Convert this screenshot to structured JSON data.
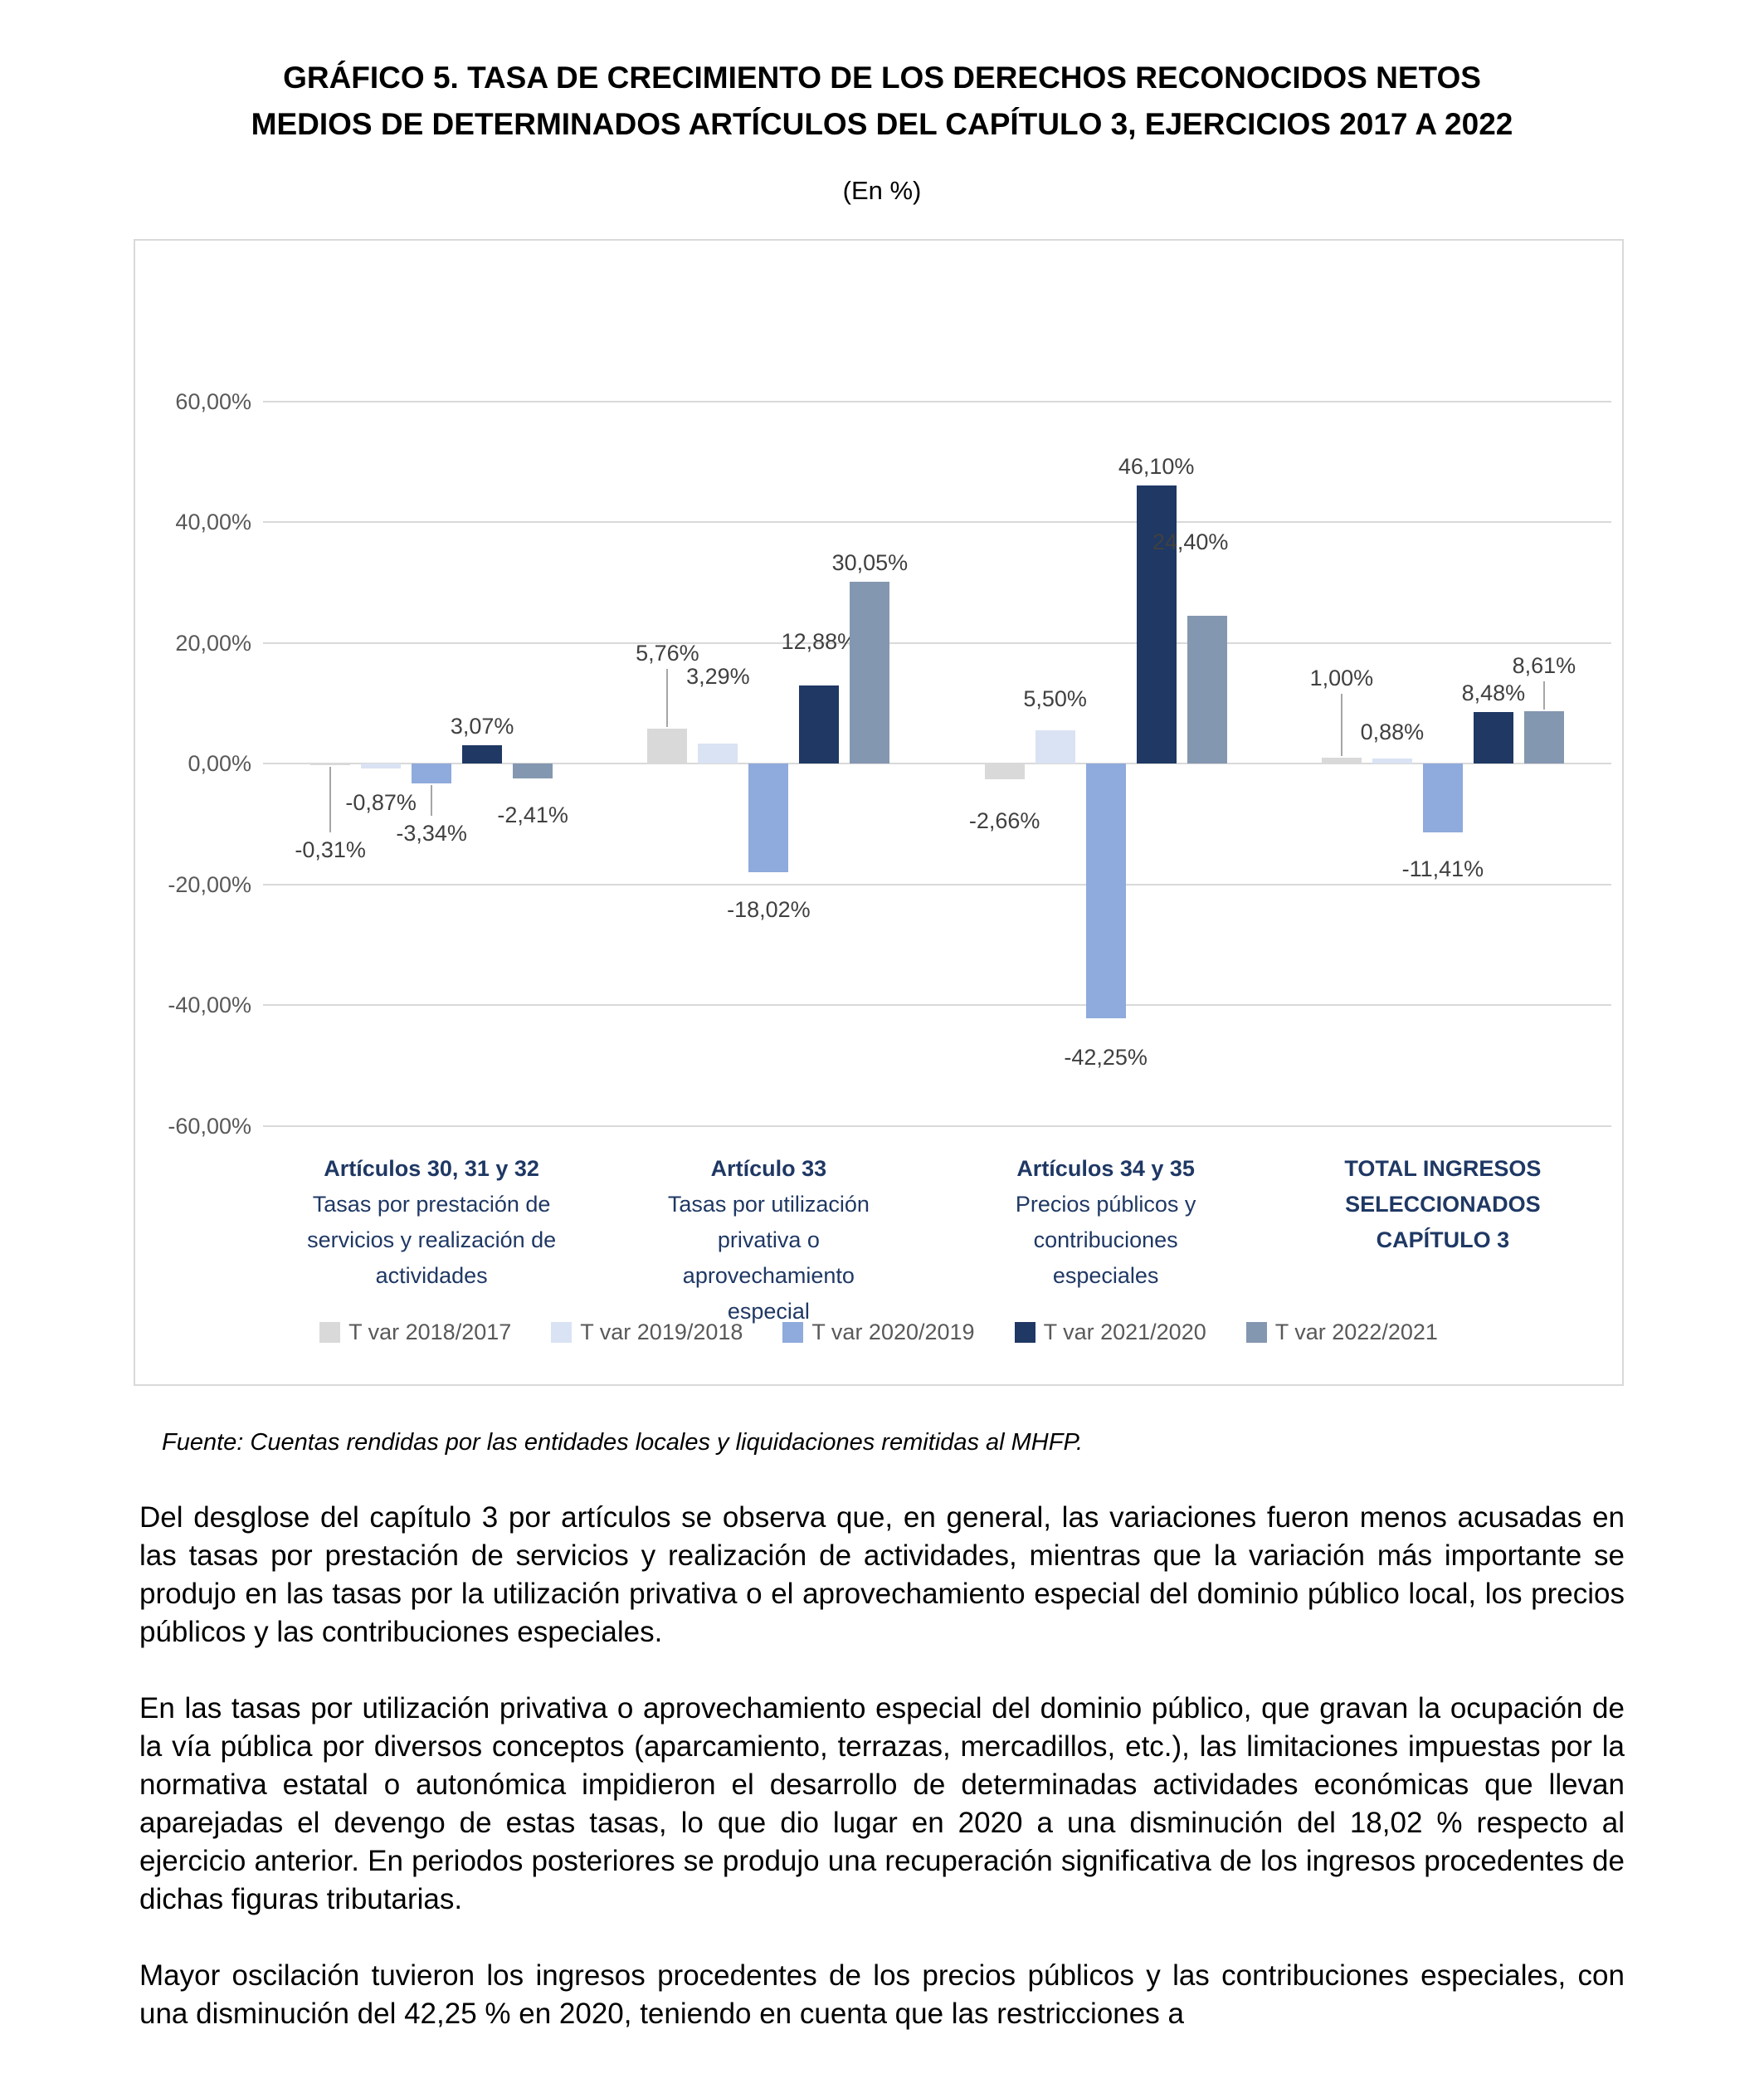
{
  "title": {
    "line1": "GRÁFICO 5.  TASA DE CRECIMIENTO DE LOS DERECHOS RECONOCIDOS NETOS",
    "line2": "MEDIOS DE DETERMINADOS ARTÍCULOS DEL CAPÍTULO 3, EJERCICIOS 2017 A 2022"
  },
  "subtitle": "(En %)",
  "source": "Fuente: Cuentas rendidas por las entidades locales y liquidaciones remitidas al MHFP.",
  "paragraphs": [
    "Del desglose del capítulo 3 por artículos se observa que, en general, las variaciones fueron menos acusadas en las tasas por prestación de servicios y realización de actividades, mientras que la variación más importante se produjo en las tasas por la utilización privativa o el aprovechamiento especial del dominio público local, los precios públicos y las contribuciones especiales.",
    "En las tasas por utilización privativa o aprovechamiento especial del dominio público, que gravan la ocupación de la vía pública por diversos conceptos (aparcamiento, terrazas, mercadillos, etc.), las limitaciones impuestas por la normativa estatal o autonómica impidieron el desarrollo de determinadas actividades económicas que llevan aparejadas el devengo de estas tasas, lo que dio lugar en 2020 a una disminución del 18,02 % respecto al ejercicio anterior. En periodos posteriores se produjo una recuperación significativa de los ingresos procedentes de dichas figuras tributarias.",
    "Mayor oscilación tuvieron los ingresos procedentes de los precios públicos y las contribuciones especiales, con una disminución del 42,25 % en 2020, teniendo en cuenta que las restricciones a"
  ],
  "chart_data": {
    "type": "bar",
    "title": "Tasa de crecimiento de los derechos reconocidos netos medios de determinados artículos del capítulo 3, ejercicios 2017 a 2022",
    "units": "En %",
    "grid": true,
    "legend_position": "bottom",
    "y_axis": {
      "min": -60,
      "max": 60,
      "step": 20,
      "tick_labels": [
        "60,00%",
        "40,00%",
        "20,00%",
        "0,00%",
        "-20,00%",
        "-40,00%",
        "-60,00%"
      ],
      "tick_values": [
        60,
        40,
        20,
        0,
        -20,
        -40,
        -60
      ]
    },
    "categories": [
      {
        "name_lines": [
          "Artículos 30, 31 y 32"
        ],
        "desc_lines": [
          "Tasas por prestación de",
          "servicios y realización de",
          "actividades"
        ]
      },
      {
        "name_lines": [
          "Artículo 33"
        ],
        "desc_lines": [
          "Tasas por utilización",
          "privativa o",
          "aprovechamiento",
          "especial"
        ]
      },
      {
        "name_lines": [
          "Artículos 34 y 35"
        ],
        "desc_lines": [
          "Precios públicos y",
          "contribuciones",
          "especiales"
        ]
      },
      {
        "name_lines": [
          "TOTAL INGRESOS",
          "SELECCIONADOS",
          "CAPÍTULO 3"
        ],
        "desc_lines": []
      }
    ],
    "series": [
      {
        "name": "T var 2018/2017",
        "color": "#d9d9d9",
        "values": [
          -0.31,
          5.76,
          -2.66,
          1.0
        ],
        "labels": [
          "-0,31%",
          "5,76%",
          "-2,66%",
          "1,00%"
        ]
      },
      {
        "name": "T var 2019/2018",
        "color": "#dae3f3",
        "values": [
          -0.87,
          3.29,
          5.5,
          0.88
        ],
        "labels": [
          "-0,87%",
          "3,29%",
          "5,50%",
          "0,88%"
        ]
      },
      {
        "name": "T var 2020/2019",
        "color": "#8faadc",
        "values": [
          -3.34,
          -18.02,
          -42.25,
          -11.41
        ],
        "labels": [
          "-3,34%",
          "-18,02%",
          "-42,25%",
          "-11,41%"
        ]
      },
      {
        "name": "T var 2021/2020",
        "color": "#1f3864",
        "values": [
          3.07,
          12.88,
          46.1,
          8.48
        ],
        "labels": [
          "3,07%",
          "12,88%",
          "46,10%",
          "8,48%"
        ]
      },
      {
        "name": "T var 2022/2021",
        "color": "#8497b0",
        "values": [
          -2.41,
          30.05,
          24.4,
          8.61
        ],
        "labels": [
          "-2,41%",
          "30,05%",
          "24,40%",
          "8,61%"
        ]
      }
    ]
  }
}
